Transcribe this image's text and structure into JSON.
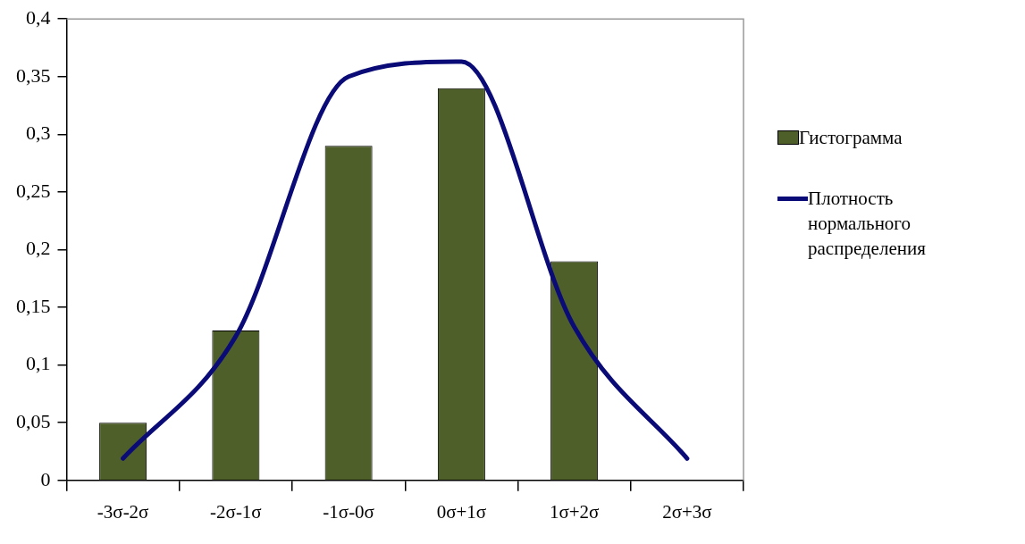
{
  "chart_data": {
    "type": "bar",
    "categories": [
      "-3σ-2σ",
      "-2σ-1σ",
      "-1σ-0σ",
      "0σ+1σ",
      "1σ+2σ",
      "2σ+3σ"
    ],
    "series": [
      {
        "name": "Гистограмма",
        "color": "#4e5f2a",
        "values": [
          0.05,
          0.13,
          0.29,
          0.34,
          0.19,
          null
        ]
      },
      {
        "name": "Плотность нормального распределения",
        "type": "line",
        "color": "#0b0b78",
        "values": [
          0.019,
          0.125,
          0.35,
          0.363,
          0.133,
          0.019
        ]
      }
    ],
    "ylim": [
      0,
      0.4
    ],
    "yticks": [
      {
        "value": 0,
        "label": "0"
      },
      {
        "value": 0.05,
        "label": "0,05"
      },
      {
        "value": 0.1,
        "label": "0,1"
      },
      {
        "value": 0.15,
        "label": "0,15"
      },
      {
        "value": 0.2,
        "label": "0,2"
      },
      {
        "value": 0.25,
        "label": "0,25"
      },
      {
        "value": 0.3,
        "label": "0,3"
      },
      {
        "value": 0.35,
        "label": "0,35"
      },
      {
        "value": 0.4,
        "label": "0,4"
      }
    ],
    "grid": false,
    "legend": "right",
    "marker": "none"
  }
}
